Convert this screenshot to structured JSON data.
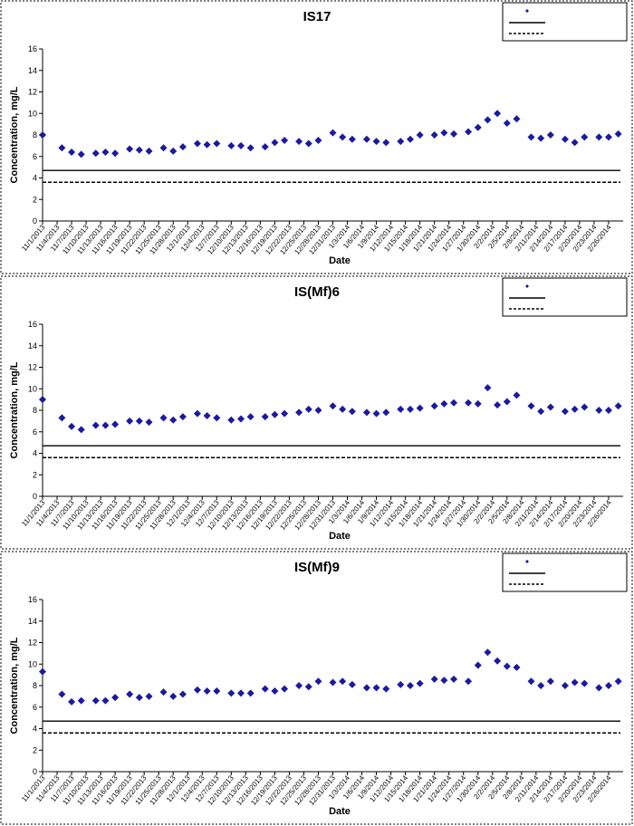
{
  "chart_data": [
    {
      "type": "scatter",
      "title": "IS17",
      "xlabel": "Date",
      "ylabel": "Concentration, mg/L",
      "ylim": [
        0,
        16
      ],
      "yticks": [
        0,
        2,
        4,
        6,
        8,
        10,
        12,
        14,
        16
      ],
      "grid": false,
      "legend_position": "top-right",
      "reference_lines": [
        {
          "name": "",
          "value": 4.7,
          "style": "solid"
        },
        {
          "name": "",
          "value": 3.6,
          "style": "dashed"
        }
      ],
      "x_tick_labels": [
        "11/1/2013",
        "11/4/2013",
        "11/7/2013",
        "11/10/2013",
        "11/13/2013",
        "11/16/2013",
        "11/19/2013",
        "11/22/2013",
        "11/25/2013",
        "11/28/2013",
        "12/1/2013",
        "12/4/2013",
        "12/7/2013",
        "12/10/2013",
        "12/13/2013",
        "12/16/2013",
        "12/19/2013",
        "12/22/2013",
        "12/25/2013",
        "12/28/2013",
        "12/31/2013",
        "1/3/2014",
        "1/6/2014",
        "1/9/2014",
        "1/12/2014",
        "1/15/2014",
        "1/18/2014",
        "1/21/2014",
        "1/24/2014",
        "1/27/2014",
        "1/30/2014",
        "2/2/2014",
        "2/5/2014",
        "2/8/2014",
        "2/11/2014",
        "2/14/2014",
        "2/17/2014",
        "2/20/2014",
        "2/23/2014",
        "2/26/2014"
      ],
      "series": [
        {
          "name": "",
          "marker": "diamond",
          "color": "#1a1aa0",
          "x": [
            "2013-11-01",
            "2013-11-05",
            "2013-11-07",
            "2013-11-09",
            "2013-11-12",
            "2013-11-14",
            "2013-11-16",
            "2013-11-19",
            "2013-11-21",
            "2013-11-23",
            "2013-11-26",
            "2013-11-28",
            "2013-11-30",
            "2013-12-03",
            "2013-12-05",
            "2013-12-07",
            "2013-12-10",
            "2013-12-12",
            "2013-12-14",
            "2013-12-17",
            "2013-12-19",
            "2013-12-21",
            "2013-12-24",
            "2013-12-26",
            "2013-12-28",
            "2013-12-31",
            "2014-01-02",
            "2014-01-04",
            "2014-01-07",
            "2014-01-09",
            "2014-01-11",
            "2014-01-14",
            "2014-01-16",
            "2014-01-18",
            "2014-01-21",
            "2014-01-23",
            "2014-01-25",
            "2014-01-28",
            "2014-01-30",
            "2014-02-01",
            "2014-02-03",
            "2014-02-05",
            "2014-02-07",
            "2014-02-10",
            "2014-02-12",
            "2014-02-14",
            "2014-02-17",
            "2014-02-19",
            "2014-02-21",
            "2014-02-24",
            "2014-02-26",
            "2014-02-28"
          ],
          "y": [
            8.0,
            6.8,
            6.4,
            6.2,
            6.3,
            6.4,
            6.3,
            6.7,
            6.6,
            6.5,
            6.8,
            6.5,
            6.9,
            7.2,
            7.1,
            7.2,
            7.0,
            7.0,
            6.8,
            6.9,
            7.3,
            7.5,
            7.4,
            7.2,
            7.5,
            8.2,
            7.8,
            7.6,
            7.6,
            7.4,
            7.3,
            7.4,
            7.6,
            8.0,
            8.0,
            8.2,
            8.1,
            8.3,
            8.7,
            9.4,
            10.0,
            9.1,
            9.5,
            7.8,
            7.7,
            8.0,
            7.6,
            7.3,
            7.8,
            7.8,
            7.8,
            8.1
          ]
        }
      ]
    },
    {
      "type": "scatter",
      "title": "IS(Mf)6",
      "xlabel": "Date",
      "ylabel": "Concentration, mg/L",
      "ylim": [
        0,
        16
      ],
      "yticks": [
        0,
        2,
        4,
        6,
        8,
        10,
        12,
        14,
        16
      ],
      "grid": false,
      "legend_position": "top-right",
      "reference_lines": [
        {
          "name": "",
          "value": 4.7,
          "style": "solid"
        },
        {
          "name": "",
          "value": 3.6,
          "style": "dashed"
        }
      ],
      "x_tick_labels": [
        "11/1/2013",
        "11/4/2013",
        "11/7/2013",
        "11/10/2013",
        "11/13/2013",
        "11/16/2013",
        "11/19/2013",
        "11/22/2013",
        "11/25/2013",
        "11/28/2013",
        "12/1/2013",
        "12/4/2013",
        "12/7/2013",
        "12/10/2013",
        "12/13/2013",
        "12/16/2013",
        "12/19/2013",
        "12/22/2013",
        "12/25/2013",
        "12/28/2013",
        "12/31/2013",
        "1/3/2014",
        "1/6/2014",
        "1/9/2014",
        "1/12/2014",
        "1/15/2014",
        "1/18/2014",
        "1/21/2014",
        "1/24/2014",
        "1/27/2014",
        "1/30/2014",
        "2/2/2014",
        "2/5/2014",
        "2/8/2014",
        "2/11/2014",
        "2/14/2014",
        "2/17/2014",
        "2/20/2014",
        "2/23/2014",
        "2/26/2014"
      ],
      "series": [
        {
          "name": "",
          "marker": "diamond",
          "color": "#1a1aa0",
          "x": [
            "2013-11-01",
            "2013-11-05",
            "2013-11-07",
            "2013-11-09",
            "2013-11-12",
            "2013-11-14",
            "2013-11-16",
            "2013-11-19",
            "2013-11-21",
            "2013-11-23",
            "2013-11-26",
            "2013-11-28",
            "2013-11-30",
            "2013-12-03",
            "2013-12-05",
            "2013-12-07",
            "2013-12-10",
            "2013-12-12",
            "2013-12-14",
            "2013-12-17",
            "2013-12-19",
            "2013-12-21",
            "2013-12-24",
            "2013-12-26",
            "2013-12-28",
            "2013-12-31",
            "2014-01-02",
            "2014-01-04",
            "2014-01-07",
            "2014-01-09",
            "2014-01-11",
            "2014-01-14",
            "2014-01-16",
            "2014-01-18",
            "2014-01-21",
            "2014-01-23",
            "2014-01-25",
            "2014-01-28",
            "2014-01-30",
            "2014-02-01",
            "2014-02-03",
            "2014-02-05",
            "2014-02-07",
            "2014-02-10",
            "2014-02-12",
            "2014-02-14",
            "2014-02-17",
            "2014-02-19",
            "2014-02-21",
            "2014-02-24",
            "2014-02-26",
            "2014-02-28"
          ],
          "y": [
            9.0,
            7.3,
            6.5,
            6.2,
            6.6,
            6.6,
            6.7,
            7.0,
            7.0,
            6.9,
            7.3,
            7.1,
            7.4,
            7.7,
            7.5,
            7.3,
            7.1,
            7.2,
            7.4,
            7.4,
            7.6,
            7.7,
            7.8,
            8.1,
            8.0,
            8.4,
            8.1,
            7.9,
            7.8,
            7.7,
            7.8,
            8.1,
            8.1,
            8.2,
            8.4,
            8.6,
            8.7,
            8.7,
            8.6,
            10.1,
            8.5,
            8.8,
            9.4,
            8.4,
            7.9,
            8.3,
            7.9,
            8.1,
            8.3,
            8.0,
            8.0,
            8.4
          ]
        }
      ]
    },
    {
      "type": "scatter",
      "title": "IS(Mf)9",
      "xlabel": "Date",
      "ylabel": "Concentration, mg/L",
      "ylim": [
        0,
        16
      ],
      "yticks": [
        0,
        2,
        4,
        6,
        8,
        10,
        12,
        14,
        16
      ],
      "grid": false,
      "legend_position": "top-right",
      "reference_lines": [
        {
          "name": "",
          "value": 4.7,
          "style": "solid"
        },
        {
          "name": "",
          "value": 3.6,
          "style": "dashed"
        }
      ],
      "x_tick_labels": [
        "11/1/2013",
        "11/4/2013",
        "11/7/2013",
        "11/10/2013",
        "11/13/2013",
        "11/16/2013",
        "11/19/2013",
        "11/22/2013",
        "11/25/2013",
        "11/28/2013",
        "12/1/2013",
        "12/4/2013",
        "12/7/2013",
        "12/10/2013",
        "12/13/2013",
        "12/16/2013",
        "12/19/2013",
        "12/22/2013",
        "12/25/2013",
        "12/28/2013",
        "12/31/2013",
        "1/3/2014",
        "1/6/2014",
        "1/9/2014",
        "1/12/2014",
        "1/15/2014",
        "1/18/2014",
        "1/21/2014",
        "1/24/2014",
        "1/27/2014",
        "1/30/2014",
        "2/2/2014",
        "2/5/2014",
        "2/8/2014",
        "2/11/2014",
        "2/14/2014",
        "2/17/2014",
        "2/20/2014",
        "2/23/2014",
        "2/26/2014"
      ],
      "series": [
        {
          "name": "",
          "marker": "diamond",
          "color": "#1a1aa0",
          "x": [
            "2013-11-01",
            "2013-11-05",
            "2013-11-07",
            "2013-11-09",
            "2013-11-12",
            "2013-11-14",
            "2013-11-16",
            "2013-11-19",
            "2013-11-21",
            "2013-11-23",
            "2013-11-26",
            "2013-11-28",
            "2013-11-30",
            "2013-12-03",
            "2013-12-05",
            "2013-12-07",
            "2013-12-10",
            "2013-12-12",
            "2013-12-14",
            "2013-12-17",
            "2013-12-19",
            "2013-12-21",
            "2013-12-24",
            "2013-12-26",
            "2013-12-28",
            "2013-12-31",
            "2014-01-02",
            "2014-01-04",
            "2014-01-07",
            "2014-01-09",
            "2014-01-11",
            "2014-01-14",
            "2014-01-16",
            "2014-01-18",
            "2014-01-21",
            "2014-01-23",
            "2014-01-25",
            "2014-01-28",
            "2014-01-30",
            "2014-02-01",
            "2014-02-03",
            "2014-02-05",
            "2014-02-07",
            "2014-02-10",
            "2014-02-12",
            "2014-02-14",
            "2014-02-17",
            "2014-02-19",
            "2014-02-21",
            "2014-02-24",
            "2014-02-26",
            "2014-02-28"
          ],
          "y": [
            9.3,
            7.2,
            6.5,
            6.6,
            6.6,
            6.6,
            6.9,
            7.2,
            6.9,
            7.0,
            7.4,
            7.0,
            7.2,
            7.6,
            7.5,
            7.5,
            7.3,
            7.3,
            7.3,
            7.7,
            7.5,
            7.7,
            8.0,
            7.9,
            8.4,
            8.3,
            8.4,
            8.1,
            7.8,
            7.8,
            7.7,
            8.1,
            8.0,
            8.2,
            8.6,
            8.5,
            8.6,
            8.4,
            9.9,
            11.1,
            10.3,
            9.8,
            9.7,
            8.4,
            8.0,
            8.4,
            8.0,
            8.3,
            8.2,
            7.8,
            8.0,
            8.4
          ]
        }
      ]
    }
  ]
}
